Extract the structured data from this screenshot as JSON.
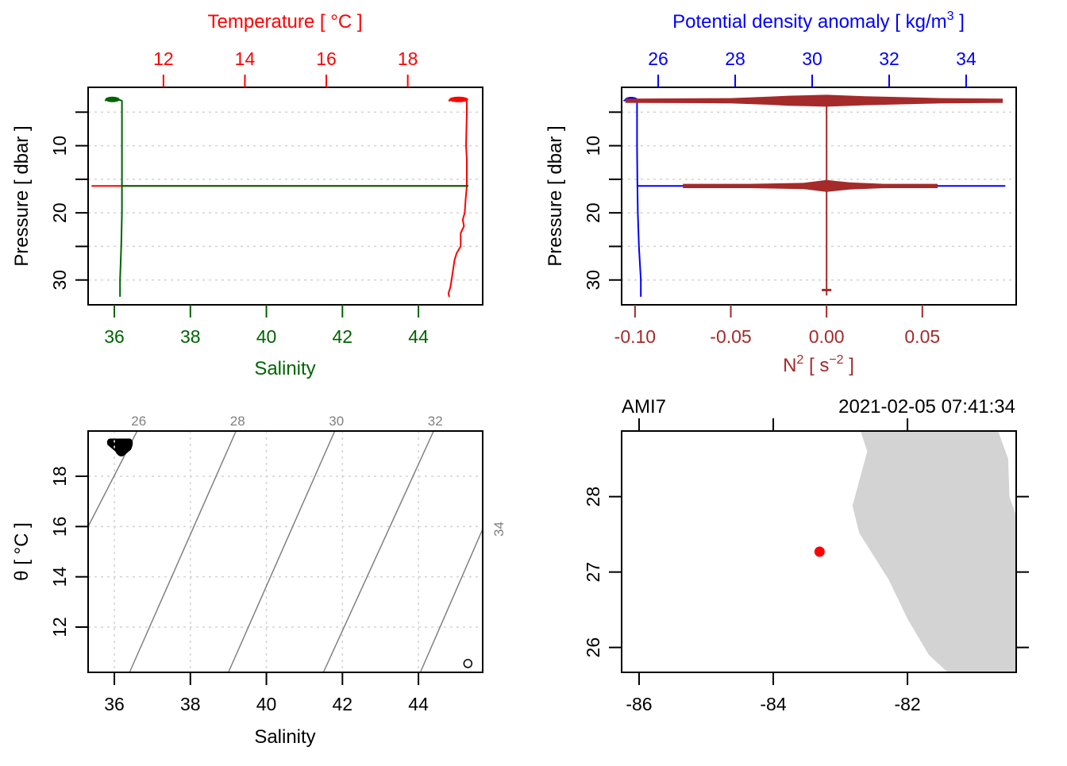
{
  "chart_data": [
    {
      "id": "profile_TS",
      "type": "line",
      "title": "",
      "xlabel": "Salinity",
      "ylabel": "Pressure [ dbar ]",
      "x2label": "Temperature [ °C ]",
      "xlim": [
        35.31,
        45.69
      ],
      "x2lim": [
        10.15,
        19.84
      ],
      "ylim": [
        33.7,
        1.3
      ],
      "x_ticks": [
        36,
        38,
        40,
        42,
        44
      ],
      "x2_ticks": [
        12,
        14,
        16,
        18
      ],
      "y_ticks": [
        5,
        10,
        15,
        20,
        25,
        30
      ],
      "y_tick_labels": [
        "",
        "10",
        "",
        "20",
        "",
        "30"
      ],
      "grid": "horizontal dotted",
      "colors": {
        "salinity": "#006400",
        "temperature": "#ff0000",
        "axis": "#000000",
        "grid": "#d3d3d3"
      },
      "series": [
        {
          "name": "Salinity",
          "axis": "bottom",
          "color": "#006400",
          "points": [
            [
              35.75,
              3.3
            ],
            [
              35.85,
              3.0
            ],
            [
              36.0,
              3.1
            ],
            [
              36.15,
              3.2
            ],
            [
              36.2,
              3.3
            ],
            [
              36.2,
              5.0
            ],
            [
              36.2,
              10.0
            ],
            [
              36.2,
              15.0
            ],
            [
              36.2,
              16.0
            ],
            [
              45.3,
              16.0
            ],
            [
              36.2,
              16.0
            ],
            [
              36.2,
              20.0
            ],
            [
              36.18,
              25.0
            ],
            [
              36.15,
              30.0
            ],
            [
              36.15,
              32.5
            ]
          ]
        },
        {
          "name": "Temperature",
          "axis": "top",
          "color": "#ff0000",
          "points": [
            [
              19.0,
              3.3
            ],
            [
              19.2,
              3.0
            ],
            [
              19.35,
              3.0
            ],
            [
              19.45,
              3.1
            ],
            [
              19.45,
              5.0
            ],
            [
              19.43,
              10.0
            ],
            [
              19.45,
              12.0
            ],
            [
              19.45,
              16.0
            ],
            [
              10.25,
              16.0
            ],
            [
              19.45,
              16.0
            ],
            [
              19.42,
              18.0
            ],
            [
              19.4,
              20.0
            ],
            [
              19.35,
              21.0
            ],
            [
              19.38,
              22.0
            ],
            [
              19.3,
              23.0
            ],
            [
              19.3,
              25.0
            ],
            [
              19.2,
              26.0
            ],
            [
              19.15,
              27.0
            ],
            [
              19.1,
              29.0
            ],
            [
              19.05,
              31.0
            ],
            [
              19.0,
              32.0
            ],
            [
              19.02,
              32.5
            ]
          ]
        }
      ]
    },
    {
      "id": "profile_density_N2",
      "type": "line",
      "xlabel": "N² [ s⁻² ]",
      "xlabel_parts": {
        "base": "N",
        "sup": "2",
        "mid": " [ s",
        "sup2": "−2",
        "end": " ]"
      },
      "ylabel": "Pressure [ dbar ]",
      "x2label": "Potential density anomaly [ kg/m³ ]",
      "x2label_parts": {
        "base": "Potential density anomaly [ kg/m",
        "sup": "3",
        "end": " ]"
      },
      "xlim": [
        -0.107,
        0.099
      ],
      "x2lim": [
        25.05,
        35.3
      ],
      "ylim": [
        33.7,
        1.3
      ],
      "x_ticks": [
        -0.1,
        -0.05,
        0.0,
        0.05
      ],
      "x_tick_labels": [
        "-0.10",
        "-0.05",
        "0.00",
        "0.05"
      ],
      "x2_ticks": [
        26,
        28,
        30,
        32,
        34
      ],
      "y_ticks": [
        5,
        10,
        15,
        20,
        25,
        30
      ],
      "y_tick_labels": [
        "",
        "10",
        "",
        "20",
        "",
        "30"
      ],
      "grid": "horizontal dotted",
      "colors": {
        "density": "#0000ff",
        "n2": "#a52a2a"
      },
      "series": [
        {
          "name": "Potential density anomaly",
          "axis": "top",
          "color": "#0000ff",
          "points": [
            [
              25.1,
              3.3
            ],
            [
              25.25,
              3.0
            ],
            [
              25.5,
              3.2
            ],
            [
              25.45,
              3.3
            ],
            [
              25.45,
              5.0
            ],
            [
              25.45,
              10.0
            ],
            [
              25.46,
              16.0
            ],
            [
              35.0,
              16.0
            ],
            [
              25.46,
              16.0
            ],
            [
              25.47,
              20.0
            ],
            [
              25.5,
              25.0
            ],
            [
              25.55,
              30.0
            ],
            [
              25.55,
              32.5
            ]
          ]
        },
        {
          "name": "N2",
          "axis": "bottom",
          "color": "#a52a2a",
          "spikes": [
            {
              "pressure": 3.3,
              "min": -0.105,
              "max": 0.092,
              "envelope": [
                [
                  -0.105,
                  0.2
                ],
                [
                  -0.05,
                  0.3
                ],
                [
                  -0.03,
                  0.6
                ],
                [
                  -0.02,
                  0.8
                ],
                [
                  0.0,
                  1.0
                ],
                [
                  0.02,
                  0.7
                ],
                [
                  0.04,
                  0.5
                ],
                [
                  0.06,
                  0.3
                ],
                [
                  0.092,
                  0.2
                ]
              ]
            },
            {
              "pressure": 16.0,
              "min": -0.075,
              "max": 0.058,
              "envelope": [
                [
                  -0.075,
                  0.2
                ],
                [
                  -0.04,
                  0.2
                ],
                [
                  -0.012,
                  0.4
                ],
                [
                  0.0,
                  1.0
                ],
                [
                  0.012,
                  0.5
                ],
                [
                  0.03,
                  0.2
                ],
                [
                  0.058,
                  0.2
                ]
              ]
            }
          ],
          "points": [
            [
              0.0,
              4.0
            ],
            [
              0.0,
              10.0
            ],
            [
              0.0,
              15.0
            ],
            [
              0.0,
              17.0
            ],
            [
              0.0,
              25.0
            ],
            [
              0.0,
              31.5
            ],
            [
              0.0,
              32.3
            ]
          ]
        }
      ]
    },
    {
      "id": "ts_diagram",
      "type": "scatter",
      "xlabel": "Salinity",
      "ylabel": "θ [ °C ]",
      "xlim": [
        35.31,
        45.69
      ],
      "ylim": [
        10.2,
        19.8
      ],
      "x_ticks": [
        36,
        38,
        40,
        42,
        44
      ],
      "y_ticks": [
        12,
        14,
        16,
        18
      ],
      "grid": "dotted both",
      "density_contours": [
        {
          "level": 26,
          "label": "26",
          "points": [
            [
              35.31,
              16.0
            ],
            [
              36.6,
              19.8
            ]
          ]
        },
        {
          "level": 28,
          "label": "28",
          "points": [
            [
              36.4,
              10.2
            ],
            [
              39.2,
              19.8
            ]
          ]
        },
        {
          "level": 30,
          "label": "30",
          "points": [
            [
              39.0,
              10.2
            ],
            [
              41.8,
              19.8
            ]
          ]
        },
        {
          "level": 32,
          "label": "32",
          "points": [
            [
              41.5,
              10.2
            ],
            [
              44.4,
              19.8
            ]
          ]
        },
        {
          "level": 34,
          "label": "34",
          "points": [
            [
              44.05,
              10.2
            ],
            [
              45.69,
              15.9
            ]
          ]
        }
      ],
      "contour_labels_top": [
        "26",
        "28",
        "30",
        "32"
      ],
      "contour_label_right": "34",
      "cluster": {
        "salinity_range": [
          35.8,
          36.5
        ],
        "theta_range": [
          18.8,
          19.5
        ],
        "center": [
          36.05,
          19.25
        ]
      },
      "outlier": {
        "salinity": 45.3,
        "theta": 10.55
      },
      "colors": {
        "points": "#000000",
        "contours": "#808080"
      }
    },
    {
      "id": "station_map",
      "type": "map",
      "station": "AMI7",
      "datetime": "2021-02-05 07:41:34",
      "xlim": [
        -86.26,
        -80.38
      ],
      "ylim": [
        25.67,
        28.87
      ],
      "x_ticks": [
        -86,
        -84,
        -82
      ],
      "y_ticks": [
        26,
        27,
        28
      ],
      "station_position": {
        "lon": -83.31,
        "lat": 27.27
      },
      "land_polygon": [
        [
          -82.7,
          28.87
        ],
        [
          -82.6,
          28.6
        ],
        [
          -82.82,
          27.88
        ],
        [
          -82.72,
          27.52
        ],
        [
          -82.28,
          26.9
        ],
        [
          -82.0,
          26.38
        ],
        [
          -81.68,
          25.9
        ],
        [
          -81.4,
          25.67
        ],
        [
          -80.38,
          25.67
        ],
        [
          -80.38,
          27.75
        ],
        [
          -80.48,
          28.0
        ],
        [
          -80.5,
          28.5
        ],
        [
          -80.65,
          28.87
        ]
      ],
      "colors": {
        "land": "#d3d3d3",
        "station": "#ff0000"
      }
    }
  ]
}
